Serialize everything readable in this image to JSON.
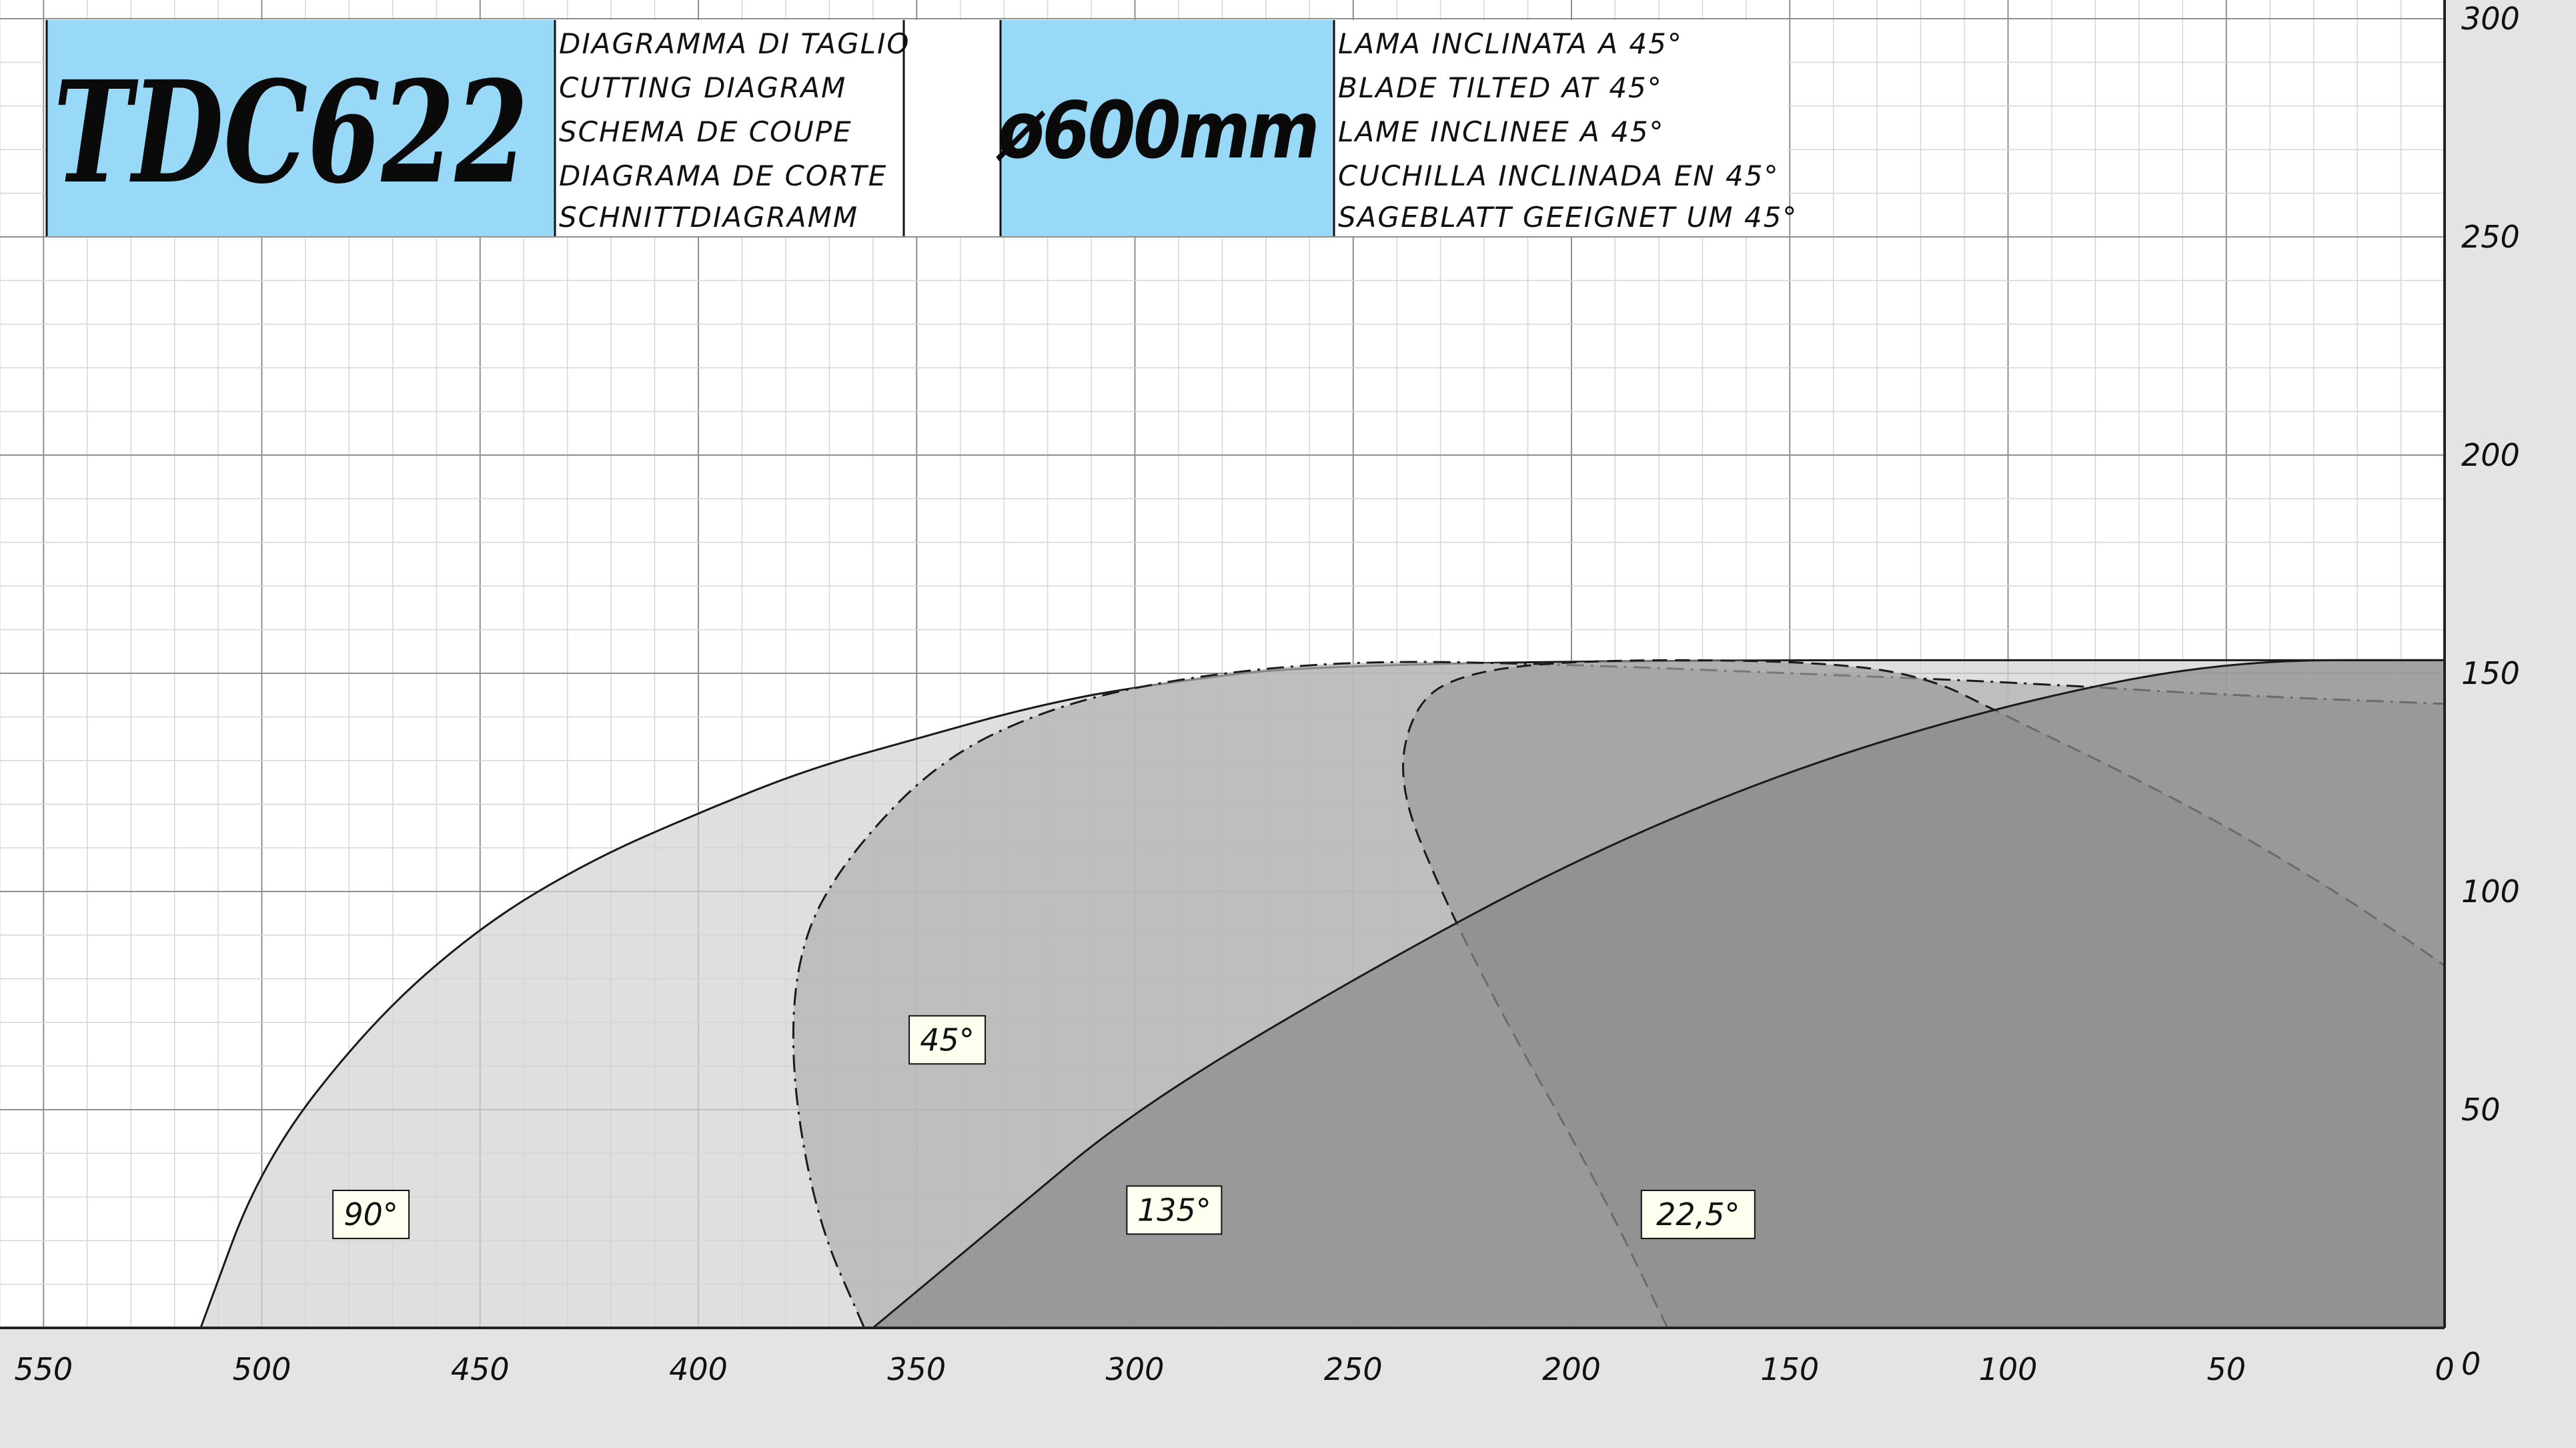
{
  "header": {
    "model": "TDC622",
    "diagram_titles": [
      "DIAGRAMMA DI TAGLIO",
      "CUTTING DIAGRAM",
      "SCHEMA DE COUPE",
      "DIAGRAMA DE CORTE",
      "SCHNITTDIAGRAMM"
    ],
    "blade_diameter": "ø600mm",
    "blade_notes": [
      "LAMA INCLINATA A 45°",
      "BLADE TILTED AT 45°",
      "LAME INCLINEE A 45°",
      "CUCHILLA INCLINADA EN 45°",
      "SAGEBLATT GEEIGNET UM 45°"
    ]
  },
  "colors": {
    "header_fill": "#98d9f7",
    "background": "#ffffff",
    "margin": "#e2e5e3",
    "grid_major": "#8f8f8f",
    "grid_minor": "#d6d6d6",
    "label_fill": "#fffff0"
  },
  "chart_data": {
    "type": "area",
    "x_reversed": true,
    "xlim": [
      0,
      560
    ],
    "ylim": [
      0,
      305
    ],
    "x_ticks": [
      550,
      500,
      450,
      400,
      350,
      300,
      250,
      200,
      150,
      100,
      50,
      0
    ],
    "y_ticks": [
      0,
      50,
      100,
      150,
      200,
      250,
      300
    ],
    "grid": true,
    "series": [
      {
        "name": "90°",
        "line": "solid",
        "fill": "#d3d3d3",
        "points": [
          [
            514,
            0
          ],
          [
            500,
            38
          ],
          [
            475,
            70
          ],
          [
            450,
            92
          ],
          [
            425,
            107
          ],
          [
            400,
            118
          ],
          [
            375,
            128
          ],
          [
            350,
            135
          ],
          [
            325,
            142
          ],
          [
            300,
            147
          ],
          [
            250,
            153
          ],
          [
            0,
            153
          ]
        ]
      },
      {
        "name": "45°",
        "line": "dash-dot",
        "fill": "#b2b2b2",
        "points": [
          [
            362,
            0
          ],
          [
            373,
            25
          ],
          [
            379,
            60
          ],
          [
            377,
            88
          ],
          [
            366,
            108
          ],
          [
            345,
            130
          ],
          [
            320,
            142
          ],
          [
            290,
            149
          ],
          [
            250,
            153
          ],
          [
            200,
            152
          ],
          [
            150,
            150
          ],
          [
            100,
            148
          ],
          [
            50,
            145
          ],
          [
            0,
            143
          ]
        ]
      },
      {
        "name": "22,5°",
        "line": "dashed",
        "fill": "#9c9c9c",
        "points": [
          [
            178,
            0
          ],
          [
            195,
            35
          ],
          [
            215,
            70
          ],
          [
            230,
            100
          ],
          [
            240,
            125
          ],
          [
            236,
            143
          ],
          [
            225,
            150
          ],
          [
            200,
            153
          ],
          [
            150,
            153
          ],
          [
            120,
            150
          ],
          [
            100,
            140
          ],
          [
            75,
            128
          ],
          [
            50,
            115
          ],
          [
            25,
            100
          ],
          [
            10,
            90
          ],
          [
            0,
            83
          ]
        ]
      },
      {
        "name": "135°",
        "line": "solid",
        "fill": "#8a8a8a",
        "points": [
          [
            360,
            0
          ],
          [
            330,
            25
          ],
          [
            300,
            50
          ],
          [
            250,
            80
          ],
          [
            200,
            107
          ],
          [
            150,
            128
          ],
          [
            100,
            143
          ],
          [
            50,
            153
          ],
          [
            0,
            153
          ]
        ]
      }
    ],
    "labels": [
      {
        "text": "90°",
        "x": 475,
        "y": 26
      },
      {
        "text": "45°",
        "x": 343,
        "y": 66
      },
      {
        "text": "135°",
        "x": 291,
        "y": 27
      },
      {
        "text": "22,5°",
        "x": 171,
        "y": 26
      }
    ]
  }
}
